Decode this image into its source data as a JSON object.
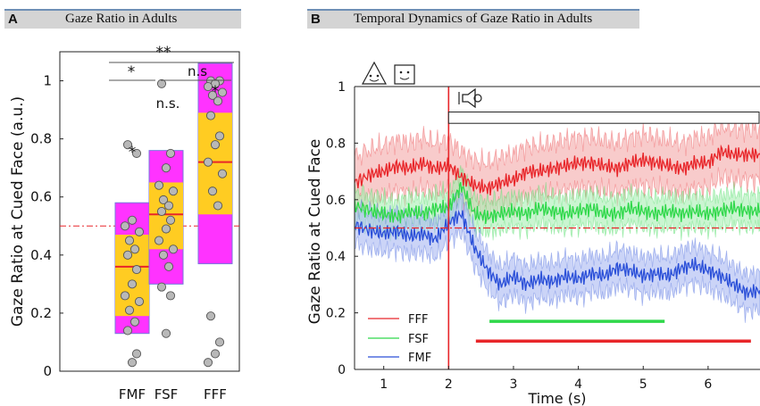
{
  "panel_a": {
    "letter": "A",
    "title": "Gaze Ratio in Adults"
  },
  "panel_b": {
    "letter": "B",
    "title": "Temporal Dynamics of Gaze Ratio in Adults"
  },
  "chart_data": [
    {
      "type": "box",
      "ylabel": "Gaze Ratio at Cued Face (a.u.)",
      "ylim": [
        0,
        1.1
      ],
      "yticks": [
        0,
        0.2,
        0.4,
        0.6,
        0.8,
        1
      ],
      "chance_line": 0.5,
      "categories": [
        "FMF",
        "FSF",
        "FFF"
      ],
      "colors": {
        "whisker_box": "#ff33ff",
        "iqr_box": "#ffcc22",
        "median": "#e8262a",
        "point": "#b8b8b8",
        "chance": "#e8262a"
      },
      "boxes": [
        {
          "category": "FMF",
          "whisker_low": 0.13,
          "q1": 0.19,
          "median": 0.36,
          "q3": 0.47,
          "whisker_high": 0.58,
          "points": [
            0.78,
            0.75,
            0.52,
            0.5,
            0.48,
            0.45,
            0.42,
            0.4,
            0.35,
            0.3,
            0.26,
            0.24,
            0.21,
            0.17,
            0.14,
            0.06,
            0.03
          ]
        },
        {
          "category": "FSF",
          "whisker_low": 0.3,
          "q1": 0.42,
          "median": 0.54,
          "q3": 0.65,
          "whisker_high": 0.76,
          "points": [
            0.99,
            0.75,
            0.7,
            0.64,
            0.62,
            0.59,
            0.57,
            0.55,
            0.52,
            0.49,
            0.45,
            0.42,
            0.4,
            0.36,
            0.29,
            0.26,
            0.13
          ]
        },
        {
          "category": "FFF",
          "whisker_low": 0.37,
          "q1": 0.54,
          "median": 0.72,
          "q3": 0.89,
          "whisker_high": 1.06,
          "points": [
            1.0,
            1.0,
            0.99,
            0.98,
            0.96,
            0.95,
            0.93,
            0.88,
            0.81,
            0.78,
            0.72,
            0.68,
            0.62,
            0.57,
            0.19,
            0.1,
            0.06,
            0.03
          ]
        }
      ],
      "annotations": {
        "box_marks": [
          "*",
          "n.s.",
          "*"
        ],
        "brackets": [
          {
            "from": "FMF",
            "to": "FFF",
            "label": "**"
          },
          {
            "from": "FMF",
            "to": "FSF",
            "label": "*"
          },
          {
            "from": "FSF",
            "to": "FFF",
            "label": "n.s"
          }
        ]
      }
    },
    {
      "type": "line",
      "xlabel": "Time (s)",
      "ylabel": "Gaze Ratio at Cued Face",
      "xlim": [
        0.55,
        6.8
      ],
      "ylim": [
        0,
        1
      ],
      "xticks": [
        1,
        2,
        3,
        4,
        5,
        6
      ],
      "yticks": [
        0,
        0.2,
        0.4,
        0.6,
        0.8,
        1
      ],
      "event_line_x": 2,
      "chance_line": 0.5,
      "stimulus_bar": {
        "x_start": 2,
        "y_top": 0.91,
        "y_bottom": 0.87
      },
      "series": [
        {
          "name": "FFF",
          "color": "#e8262a",
          "band_color": "#f4a8a8",
          "x": [
            0.55,
            0.8,
            1.0,
            1.2,
            1.4,
            1.6,
            1.8,
            2.0,
            2.2,
            2.4,
            2.6,
            2.8,
            3.0,
            3.2,
            3.4,
            3.6,
            3.8,
            4.0,
            4.2,
            4.4,
            4.6,
            4.8,
            5.0,
            5.2,
            5.4,
            5.6,
            5.8,
            6.0,
            6.2,
            6.4,
            6.6,
            6.8
          ],
          "y": [
            0.66,
            0.69,
            0.7,
            0.72,
            0.71,
            0.73,
            0.71,
            0.72,
            0.68,
            0.65,
            0.64,
            0.66,
            0.67,
            0.7,
            0.7,
            0.71,
            0.72,
            0.73,
            0.73,
            0.72,
            0.71,
            0.73,
            0.74,
            0.73,
            0.72,
            0.71,
            0.73,
            0.73,
            0.77,
            0.76,
            0.76,
            0.76
          ],
          "half_width": 0.09
        },
        {
          "name": "FSF",
          "color": "#2fd84a",
          "band_color": "#a6efb3",
          "x": [
            0.55,
            0.8,
            1.0,
            1.2,
            1.4,
            1.6,
            1.8,
            2.0,
            2.2,
            2.4,
            2.6,
            2.8,
            3.0,
            3.2,
            3.4,
            3.6,
            3.8,
            4.0,
            4.2,
            4.4,
            4.6,
            4.8,
            5.0,
            5.2,
            5.4,
            5.6,
            5.8,
            6.0,
            6.2,
            6.4,
            6.6,
            6.8
          ],
          "y": [
            0.58,
            0.56,
            0.55,
            0.54,
            0.56,
            0.55,
            0.57,
            0.57,
            0.65,
            0.55,
            0.54,
            0.55,
            0.56,
            0.55,
            0.57,
            0.56,
            0.55,
            0.56,
            0.57,
            0.55,
            0.55,
            0.57,
            0.56,
            0.55,
            0.56,
            0.55,
            0.56,
            0.55,
            0.56,
            0.57,
            0.56,
            0.56
          ],
          "half_width": 0.055
        },
        {
          "name": "FMF",
          "color": "#2a4fd8",
          "band_color": "#a9b8f2",
          "x": [
            0.55,
            0.8,
            1.0,
            1.2,
            1.4,
            1.6,
            1.8,
            2.0,
            2.2,
            2.4,
            2.6,
            2.8,
            3.0,
            3.2,
            3.4,
            3.6,
            3.8,
            4.0,
            4.2,
            4.4,
            4.6,
            4.8,
            5.0,
            5.2,
            5.4,
            5.6,
            5.8,
            6.0,
            6.2,
            6.4,
            6.6,
            6.8
          ],
          "y": [
            0.51,
            0.49,
            0.48,
            0.49,
            0.47,
            0.48,
            0.46,
            0.52,
            0.55,
            0.43,
            0.35,
            0.3,
            0.33,
            0.3,
            0.32,
            0.31,
            0.33,
            0.32,
            0.34,
            0.33,
            0.36,
            0.35,
            0.33,
            0.34,
            0.33,
            0.36,
            0.37,
            0.35,
            0.33,
            0.3,
            0.27,
            0.28
          ],
          "half_width": 0.065
        }
      ],
      "significance_bars": [
        {
          "color": "#2fd84a",
          "x_start": 2.63,
          "x_end": 5.33,
          "y": 0.17
        },
        {
          "color": "#e8262a",
          "x_start": 2.42,
          "x_end": 6.66,
          "y": 0.1
        }
      ],
      "legend": {
        "placement": "bottom-left",
        "entries": [
          "FFF",
          "FSF",
          "FMF"
        ]
      }
    }
  ]
}
